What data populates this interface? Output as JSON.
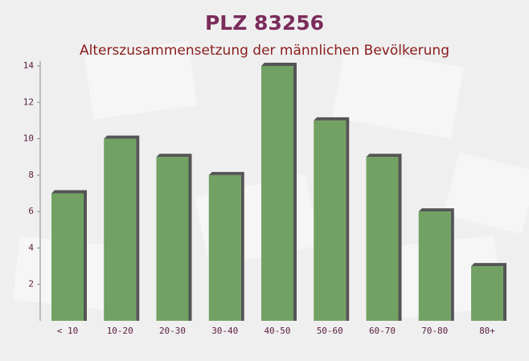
{
  "chart_data": {
    "type": "bar",
    "title": "PLZ 83256",
    "subtitle": "Alterszusammensetzung der männlichen Bevölkerung",
    "categories": [
      "< 10",
      "10-20",
      "20-30",
      "30-40",
      "40-50",
      "50-60",
      "60-70",
      "70-80",
      "80+"
    ],
    "values": [
      7,
      10,
      9,
      8,
      14,
      11,
      9,
      6,
      3
    ],
    "color": "#6a9d5b",
    "ylim": [
      0,
      14
    ],
    "yticks": [
      2,
      4,
      6,
      8,
      10,
      12,
      14
    ]
  }
}
